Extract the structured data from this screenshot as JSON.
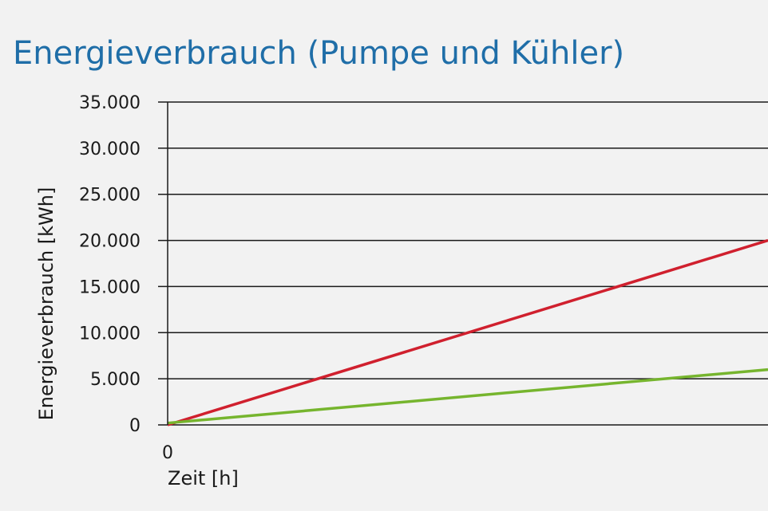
{
  "chart_data": {
    "type": "line",
    "title": "Energieverbrauch (Pumpe und Kühler)",
    "xlabel": "Zeit [h]",
    "ylabel": "Energieverbrauch [kWh]",
    "x_ticks": [
      "0"
    ],
    "y_ticks": [
      "0",
      "5.000",
      "10.000",
      "15.000",
      "20.000",
      "25.000",
      "30.000",
      "35.000"
    ],
    "y_tick_values": [
      0,
      5000,
      10000,
      15000,
      20000,
      25000,
      30000,
      35000
    ],
    "ylim": [
      0,
      35000
    ],
    "xlim": [
      0,
      1
    ],
    "grid": true,
    "series": [
      {
        "x": [
          0,
          1
        ],
        "values": [
          0,
          20000
        ],
        "color": "#d0202e"
      },
      {
        "x": [
          0,
          1
        ],
        "values": [
          200,
          6000
        ],
        "color": "#76b52e"
      }
    ]
  }
}
